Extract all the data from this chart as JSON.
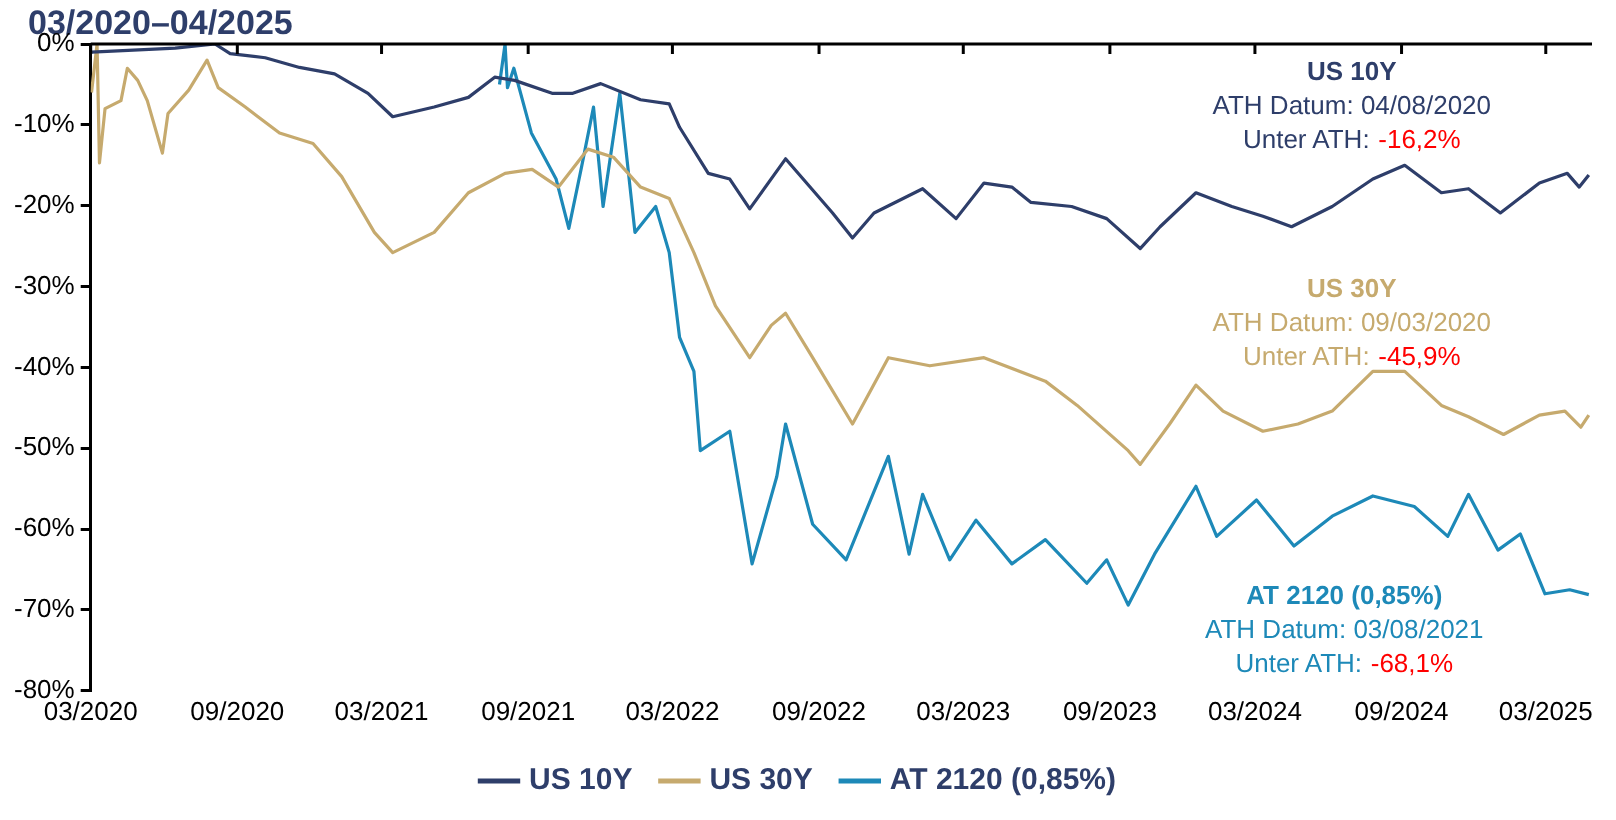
{
  "chart_data": {
    "type": "line",
    "title": "03/2020–04/2025",
    "xlim": [
      "2020-03-01",
      "2025-04-28"
    ],
    "xticks": [
      {
        "value": "2020-03-01",
        "label": "03/2020"
      },
      {
        "value": "2020-09-01",
        "label": "09/2020"
      },
      {
        "value": "2021-03-01",
        "label": "03/2021"
      },
      {
        "value": "2021-09-01",
        "label": "09/2021"
      },
      {
        "value": "2022-03-01",
        "label": "03/2022"
      },
      {
        "value": "2022-09-01",
        "label": "09/2022"
      },
      {
        "value": "2023-03-01",
        "label": "03/2023"
      },
      {
        "value": "2023-09-01",
        "label": "09/2023"
      },
      {
        "value": "2024-03-01",
        "label": "03/2024"
      },
      {
        "value": "2024-09-01",
        "label": "09/2024"
      },
      {
        "value": "2025-03-01",
        "label": "03/2025"
      }
    ],
    "ylim": [
      -80,
      0
    ],
    "yticks": [
      {
        "value": 0,
        "label": "0%"
      },
      {
        "value": -10,
        "label": "-10%"
      },
      {
        "value": -20,
        "label": "-20%"
      },
      {
        "value": -30,
        "label": "-30%"
      },
      {
        "value": -40,
        "label": "-40%"
      },
      {
        "value": -50,
        "label": "-50%"
      },
      {
        "value": -60,
        "label": "-60%"
      },
      {
        "value": -70,
        "label": "-70%"
      },
      {
        "value": -80,
        "label": "-80%"
      }
    ],
    "grid": false,
    "legend": "bottom",
    "marker": "none",
    "line_style": "solid",
    "annotations": [
      "US 10Y",
      "ATH Datum: 04/08/2020",
      "Unter ATH: -16,2%",
      "US 30Y",
      "ATH Datum: 09/03/2020",
      "Unter ATH: -45,9%",
      "AT 2120 (0,85%)",
      "ATH Datum: 03/08/2021",
      "Unter ATH: -68,1%"
    ],
    "series": [
      {
        "name": "US 10Y",
        "color": "#2e3e6a",
        "x": [
          "2020-03-02",
          "2020-06-15",
          "2020-08-04",
          "2020-08-23",
          "2020-10-06",
          "2020-11-18",
          "2021-01-01",
          "2021-02-12",
          "2021-03-15",
          "2021-05-06",
          "2021-06-18",
          "2021-07-21",
          "2021-08-15",
          "2021-10-01",
          "2021-10-27",
          "2021-12-01",
          "2022-01-20",
          "2022-02-25",
          "2022-03-10",
          "2022-04-15",
          "2022-05-12",
          "2022-06-06",
          "2022-07-21",
          "2022-09-18",
          "2022-10-13",
          "2022-11-09",
          "2023-01-09",
          "2023-02-20",
          "2023-03-27",
          "2023-05-01",
          "2023-05-25",
          "2023-07-15",
          "2023-08-28",
          "2023-10-09",
          "2023-11-03",
          "2023-12-18",
          "2024-02-01",
          "2024-03-11",
          "2024-04-16",
          "2024-06-06",
          "2024-07-27",
          "2024-09-05",
          "2024-10-21",
          "2024-11-24",
          "2025-01-03",
          "2025-02-21",
          "2025-03-28",
          "2025-04-12",
          "2025-04-24"
        ],
        "values": [
          -1,
          -0.5,
          0,
          -1.2,
          -1.7,
          -2.9,
          -3.7,
          -6.1,
          -9,
          -7.8,
          -6.6,
          -4.1,
          -4.5,
          -6.1,
          -6.1,
          -4.9,
          -6.9,
          -7.4,
          -10.3,
          -16,
          -16.7,
          -20.4,
          -14.2,
          -20.9,
          -24,
          -20.9,
          -17.9,
          -21.6,
          -17.2,
          -17.7,
          -19.6,
          -20.1,
          -21.6,
          -25.3,
          -22.6,
          -18.4,
          -20.1,
          -21.3,
          -22.6,
          -20.1,
          -16.7,
          -15,
          -18.4,
          -17.9,
          -20.9,
          -17.2,
          -16,
          -17.7,
          -16.2
        ]
      },
      {
        "name": "US 30Y",
        "color": "#c6aa6e",
        "x": [
          "2020-03-02",
          "2020-03-09",
          "2020-03-12",
          "2020-03-19",
          "2020-04-08",
          "2020-04-16",
          "2020-04-29",
          "2020-05-11",
          "2020-05-30",
          "2020-06-06",
          "2020-07-02",
          "2020-07-25",
          "2020-08-08",
          "2020-09-11",
          "2020-10-24",
          "2020-12-05",
          "2021-01-10",
          "2021-02-20",
          "2021-03-15",
          "2021-05-06",
          "2021-06-18",
          "2021-08-03",
          "2021-09-06",
          "2021-10-09",
          "2021-11-15",
          "2021-12-17",
          "2022-01-20",
          "2022-02-25",
          "2022-03-28",
          "2022-04-24",
          "2022-06-06",
          "2022-07-03",
          "2022-07-21",
          "2022-08-24",
          "2022-10-13",
          "2022-11-27",
          "2023-01-18",
          "2023-03-27",
          "2023-06-12",
          "2023-07-22",
          "2023-09-24",
          "2023-10-09",
          "2023-11-15",
          "2023-12-18",
          "2024-01-21",
          "2024-03-11",
          "2024-04-24",
          "2024-06-06",
          "2024-07-27",
          "2024-09-05",
          "2024-10-21",
          "2024-11-24",
          "2025-01-07",
          "2025-02-21",
          "2025-03-25",
          "2025-04-14",
          "2025-04-24"
        ],
        "values": [
          -6,
          0,
          -14.7,
          -8,
          -7,
          -3,
          -4.5,
          -7,
          -13.5,
          -8.6,
          -5.7,
          -2,
          -5.4,
          -7.8,
          -11,
          -12.3,
          -16.4,
          -23.3,
          -25.8,
          -23.3,
          -18.4,
          -16,
          -15.5,
          -17.7,
          -13,
          -14,
          -17.7,
          -19.1,
          -25.8,
          -32.4,
          -38.8,
          -34.8,
          -33.3,
          -38.8,
          -47,
          -38.8,
          -39.8,
          -38.8,
          -41.7,
          -44.7,
          -50.3,
          -52,
          -47,
          -42.2,
          -45.4,
          -47.9,
          -47,
          -45.4,
          -40.5,
          -40.5,
          -44.7,
          -46.1,
          -48.3,
          -45.9,
          -45.4,
          -47.4,
          -45.9
        ]
      },
      {
        "name": "AT 2120 (0,85%)",
        "color": "#1d89b8",
        "x": [
          "2021-07-27",
          "2021-08-03",
          "2021-08-06",
          "2021-08-14",
          "2021-09-05",
          "2021-10-06",
          "2021-10-22",
          "2021-11-07",
          "2021-11-22",
          "2021-12-04",
          "2021-12-25",
          "2022-01-13",
          "2022-02-08",
          "2022-02-25",
          "2022-03-10",
          "2022-03-28",
          "2022-04-05",
          "2022-05-12",
          "2022-06-09",
          "2022-07-10",
          "2022-07-21",
          "2022-08-24",
          "2022-10-05",
          "2022-11-27",
          "2022-12-23",
          "2023-01-09",
          "2023-02-12",
          "2023-03-17",
          "2023-05-01",
          "2023-06-12",
          "2023-08-03",
          "2023-08-28",
          "2023-09-24",
          "2023-10-27",
          "2023-12-18",
          "2024-01-13",
          "2024-03-03",
          "2024-04-19",
          "2024-06-06",
          "2024-07-27",
          "2024-09-17",
          "2024-10-29",
          "2024-11-24",
          "2024-12-31",
          "2025-01-28",
          "2025-02-28",
          "2025-03-31",
          "2025-04-24"
        ],
        "values": [
          -5,
          0,
          -5.4,
          -3,
          -11,
          -16.7,
          -22.8,
          -15.2,
          -7.8,
          -20.1,
          -6.1,
          -23.3,
          -20.1,
          -25.8,
          -36.3,
          -40.5,
          -50.3,
          -47.9,
          -64.3,
          -53.5,
          -47,
          -59.4,
          -63.8,
          -51,
          -63.1,
          -55.7,
          -63.8,
          -58.9,
          -64.3,
          -61.3,
          -66.7,
          -63.8,
          -69.4,
          -63.1,
          -54.7,
          -60.9,
          -56.4,
          -62.1,
          -58.4,
          -55.9,
          -57.2,
          -60.9,
          -55.7,
          -62.6,
          -60.6,
          -68,
          -67.5,
          -68.1
        ]
      }
    ]
  }
}
